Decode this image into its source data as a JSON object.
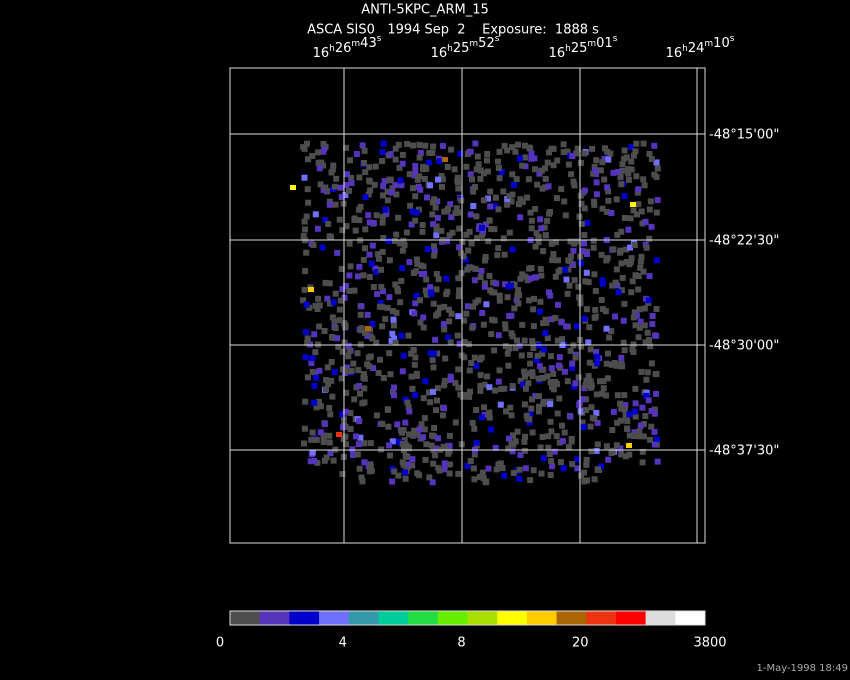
{
  "header": {
    "title": "ANTI-5KPC_ARM_15",
    "subtitle": "ASCA SIS0   1994 Sep  2    Exposure:  1888 s"
  },
  "ra_labels": [
    "16h26m43s",
    "16h25m52s",
    "16h25m01s",
    "16h24m10s"
  ],
  "dec_labels": [
    "-48°15'00\"",
    "-48°22'30\"",
    "-48°30'00\"",
    "-48°37'30\""
  ],
  "colorbar": {
    "colors": [
      "#4d4d4d",
      "#5533bb",
      "#0000cc",
      "#7070ff",
      "#3399aa",
      "#00cc99",
      "#22dd44",
      "#66ee00",
      "#aadd00",
      "#ffff00",
      "#ffcc00",
      "#aa6600",
      "#ee3311",
      "#ff0000",
      "#dddddd",
      "#ffffff"
    ],
    "labels": [
      0,
      4,
      8,
      20,
      3800
    ]
  },
  "timestamp": "1-May-1998 18:49"
}
